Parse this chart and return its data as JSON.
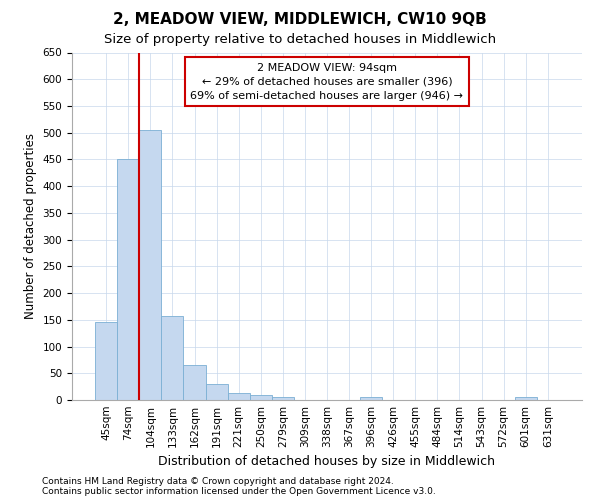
{
  "title": "2, MEADOW VIEW, MIDDLEWICH, CW10 9QB",
  "subtitle": "Size of property relative to detached houses in Middlewich",
  "xlabel": "Distribution of detached houses by size in Middlewich",
  "ylabel": "Number of detached properties",
  "categories": [
    "45sqm",
    "74sqm",
    "104sqm",
    "133sqm",
    "162sqm",
    "191sqm",
    "221sqm",
    "250sqm",
    "279sqm",
    "309sqm",
    "338sqm",
    "367sqm",
    "396sqm",
    "426sqm",
    "455sqm",
    "484sqm",
    "514sqm",
    "543sqm",
    "572sqm",
    "601sqm",
    "631sqm"
  ],
  "values": [
    145,
    450,
    505,
    158,
    65,
    30,
    13,
    9,
    5,
    0,
    0,
    0,
    5,
    0,
    0,
    0,
    0,
    0,
    0,
    5,
    0
  ],
  "bar_color": "#c5d8ef",
  "bar_edge_color": "#7bafd4",
  "vline_x_index": 1.5,
  "vline_color": "#cc0000",
  "annotation_line1": "2 MEADOW VIEW: 94sqm",
  "annotation_line2": "← 29% of detached houses are smaller (396)",
  "annotation_line3": "69% of semi-detached houses are larger (946) →",
  "annotation_box_color": "#ffffff",
  "annotation_box_edge_color": "#cc0000",
  "ylim": [
    0,
    650
  ],
  "yticks": [
    0,
    50,
    100,
    150,
    200,
    250,
    300,
    350,
    400,
    450,
    500,
    550,
    600,
    650
  ],
  "footer_line1": "Contains HM Land Registry data © Crown copyright and database right 2024.",
  "footer_line2": "Contains public sector information licensed under the Open Government Licence v3.0.",
  "bg_color": "#ffffff",
  "grid_color": "#c8d8ec",
  "title_fontsize": 11,
  "subtitle_fontsize": 9.5,
  "xlabel_fontsize": 9,
  "ylabel_fontsize": 8.5,
  "tick_fontsize": 7.5,
  "footer_fontsize": 6.5
}
